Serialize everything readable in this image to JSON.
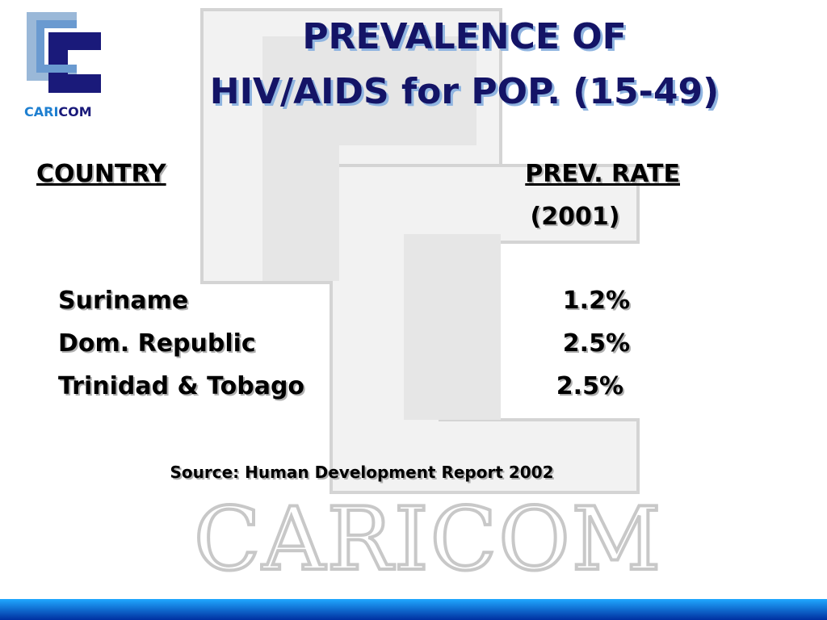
{
  "logo": {
    "text_a": "CARI",
    "text_b": "COM"
  },
  "header": {
    "title_line1": "PREVALENCE OF",
    "title_line2": "HIV/AIDS for POP. (15-49)"
  },
  "table": {
    "columns": [
      "COUNTRY",
      "PREV. RATE"
    ],
    "column_sub": "(2001)",
    "rows": [
      [
        "Suriname",
        "1.2%"
      ],
      [
        "Dom. Republic",
        "2.5%"
      ],
      [
        "Trinidad & Tobago",
        "2.5%"
      ]
    ]
  },
  "source": "Source: Human Development Report 2002",
  "watermark": "CARICOM"
}
